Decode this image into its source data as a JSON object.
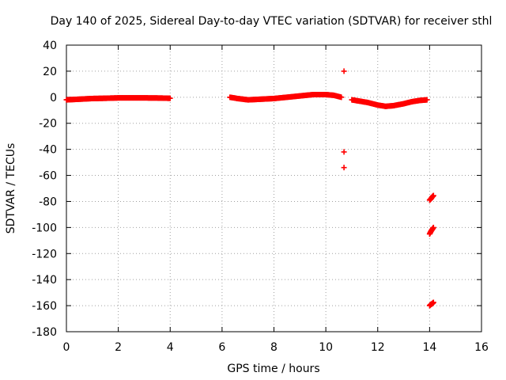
{
  "chart_data": {
    "type": "scatter",
    "title": "Day 140 of 2025, Sidereal Day-to-day VTEC variation (SDTVAR) for receiver sthl",
    "xlabel": "GPS time / hours",
    "ylabel": "SDTVAR / TECUs",
    "xlim": [
      0,
      16
    ],
    "ylim": [
      -180,
      40
    ],
    "xticks": [
      0,
      2,
      4,
      6,
      8,
      10,
      12,
      14,
      16
    ],
    "yticks": [
      40,
      20,
      0,
      -20,
      -40,
      -60,
      -80,
      -100,
      -120,
      -140,
      -160,
      -180
    ],
    "grid": true,
    "marker": "+",
    "color": "#ff0000",
    "series": [
      {
        "name": "sthl",
        "segments": [
          {
            "x": [
              0.0,
              0.5,
              1.0,
              1.5,
              2.0,
              2.5,
              3.0,
              3.5,
              4.0
            ],
            "y": [
              -2,
              -1.5,
              -1,
              -0.8,
              -0.5,
              -0.5,
              -0.5,
              -0.6,
              -0.8
            ]
          },
          {
            "x": [
              6.3,
              6.6,
              7.0,
              7.5,
              8.0,
              8.5,
              9.0,
              9.5,
              10.0,
              10.3,
              10.6
            ],
            "y": [
              0,
              -1,
              -2,
              -1.5,
              -1,
              0,
              1,
              2,
              2,
              1.5,
              0
            ]
          },
          {
            "x": [
              11.0,
              11.3,
              11.6,
              12.0,
              12.3,
              12.6,
              13.0,
              13.3,
              13.6,
              13.9
            ],
            "y": [
              -2,
              -3,
              -4,
              -6,
              -7,
              -6.5,
              -5,
              -3.5,
              -2.5,
              -2
            ]
          }
        ],
        "outliers": [
          {
            "x": 10.7,
            "y": 20
          },
          {
            "x": 10.7,
            "y": -42
          },
          {
            "x": 10.7,
            "y": -54
          }
        ],
        "clusters": [
          {
            "x": [
              14.0,
              14.05,
              14.1,
              14.15
            ],
            "y": [
              -79,
              -78,
              -76.5,
              -75.5
            ]
          },
          {
            "x": [
              14.0,
              14.05,
              14.1,
              14.15
            ],
            "y": [
              -105,
              -103,
              -101.5,
              -100
            ]
          },
          {
            "x": [
              14.0,
              14.05,
              14.1,
              14.15
            ],
            "y": [
              -160,
              -159,
              -158.5,
              -157.5
            ]
          }
        ]
      }
    ]
  }
}
